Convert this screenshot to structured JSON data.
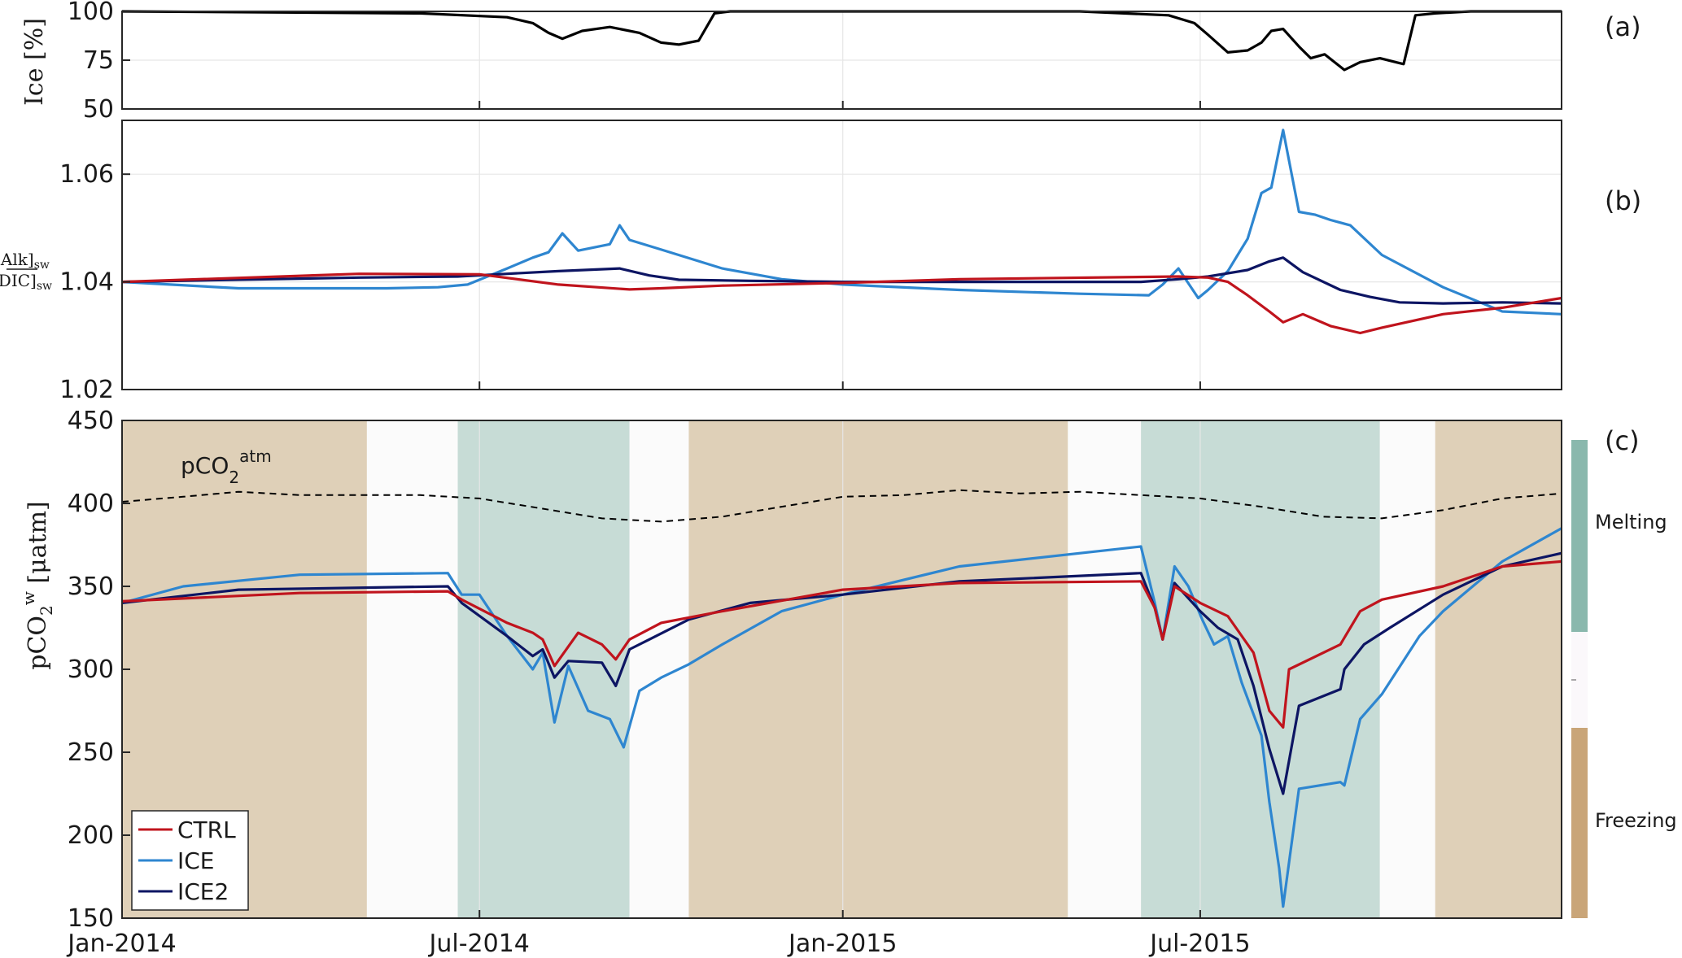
{
  "colors": {
    "ctrl": "#c0141d",
    "ice": "#2e86d0",
    "ice2": "#0d1563",
    "ice_cover": "#000000",
    "atm": "#000000",
    "freezing": "#dfd0b8",
    "melting": "#c7dcd6",
    "neutral": "#fbfbfb",
    "cbar_freezing": "#c9a578",
    "cbar_melting": "#8ab8ad",
    "cbar_neutral": "#fbf8fb",
    "grid": "#e6e6e6"
  },
  "x_ticks": [
    "Jan-2014",
    "Jul-2014",
    "Jan-2015",
    "Jul-2015"
  ],
  "chart_data": [
    {
      "panel": "(a)",
      "type": "line",
      "ylabel": "Ice [%]",
      "ylim": [
        50,
        100
      ],
      "yticks": [
        50,
        75,
        100
      ],
      "series": [
        {
          "key": "ice_cover",
          "x": [
            "2014-01-01",
            "2014-06-01",
            "2014-07-15",
            "2014-07-28",
            "2014-08-05",
            "2014-08-12",
            "2014-08-22",
            "2014-09-05",
            "2014-09-20",
            "2014-10-01",
            "2014-10-10",
            "2014-10-20",
            "2014-10-28",
            "2014-11-05",
            "2015-05-01",
            "2015-06-15",
            "2015-06-28",
            "2015-07-05",
            "2015-07-15",
            "2015-07-25",
            "2015-08-01",
            "2015-08-06",
            "2015-08-12",
            "2015-08-20",
            "2015-08-26",
            "2015-09-02",
            "2015-09-12",
            "2015-09-20",
            "2015-09-30",
            "2015-10-08",
            "2015-10-12",
            "2015-10-18",
            "2015-10-28",
            "2015-11-15",
            "2015-12-31"
          ],
          "values": [
            100,
            99,
            97,
            94,
            89,
            86,
            90,
            92,
            89,
            84,
            83,
            85,
            99,
            100,
            100,
            98,
            94,
            88,
            79,
            80,
            84,
            90,
            91,
            82,
            76,
            78,
            70,
            74,
            76,
            74,
            73,
            98,
            99,
            100,
            100
          ]
        }
      ]
    },
    {
      "panel": "(b)",
      "type": "line",
      "ylabel": "[Alk]sw / [DIC]sw",
      "ylim": [
        1.02,
        1.07
      ],
      "yticks": [
        1.02,
        1.04,
        1.06
      ],
      "series": [
        {
          "key": "ice",
          "x": [
            "2014-01-01",
            "2014-03-01",
            "2014-05-15",
            "2014-06-10",
            "2014-06-25",
            "2014-07-15",
            "2014-07-28",
            "2014-08-05",
            "2014-08-12",
            "2014-08-20",
            "2014-09-05",
            "2014-09-10",
            "2014-09-15",
            "2014-10-01",
            "2014-11-01",
            "2014-12-01",
            "2015-01-01",
            "2015-03-01",
            "2015-05-01",
            "2015-06-05",
            "2015-06-12",
            "2015-06-20",
            "2015-06-30",
            "2015-07-05",
            "2015-07-15",
            "2015-07-20",
            "2015-07-25",
            "2015-08-01",
            "2015-08-06",
            "2015-08-12",
            "2015-08-20",
            "2015-08-28",
            "2015-09-05",
            "2015-09-15",
            "2015-10-01",
            "2015-11-01",
            "2015-12-01",
            "2015-12-31"
          ],
          "values": [
            1.04,
            1.0388,
            1.0388,
            1.039,
            1.0395,
            1.0425,
            1.0445,
            1.0455,
            1.049,
            1.0458,
            1.047,
            1.0505,
            1.0478,
            1.046,
            1.0425,
            1.0405,
            1.0395,
            1.0385,
            1.0378,
            1.0375,
            1.0395,
            1.0425,
            1.037,
            1.0385,
            1.042,
            1.045,
            1.048,
            1.0565,
            1.0575,
            1.0682,
            1.053,
            1.0525,
            1.0515,
            1.0505,
            1.045,
            1.039,
            1.0345,
            1.034
          ]
        },
        {
          "key": "ice2",
          "x": [
            "2014-01-01",
            "2014-05-01",
            "2014-06-20",
            "2014-07-15",
            "2014-08-10",
            "2014-09-10",
            "2014-09-25",
            "2014-10-10",
            "2014-11-15",
            "2015-01-01",
            "2015-03-01",
            "2015-06-01",
            "2015-06-20",
            "2015-07-05",
            "2015-07-25",
            "2015-08-05",
            "2015-08-12",
            "2015-08-22",
            "2015-09-10",
            "2015-09-25",
            "2015-10-10",
            "2015-11-01",
            "2015-12-01",
            "2015-12-31"
          ],
          "values": [
            1.04,
            1.0408,
            1.041,
            1.0415,
            1.042,
            1.0425,
            1.0412,
            1.0404,
            1.0402,
            1.04,
            1.04,
            1.04,
            1.0405,
            1.041,
            1.0422,
            1.0438,
            1.0445,
            1.0418,
            1.0385,
            1.0372,
            1.0362,
            1.036,
            1.0362,
            1.036
          ]
        },
        {
          "key": "ctrl",
          "x": [
            "2014-01-01",
            "2014-05-01",
            "2014-07-01",
            "2014-08-10",
            "2014-09-15",
            "2014-10-01",
            "2014-11-01",
            "2015-01-01",
            "2015-03-01",
            "2015-06-20",
            "2015-07-05",
            "2015-07-15",
            "2015-07-25",
            "2015-08-05",
            "2015-08-12",
            "2015-08-22",
            "2015-09-05",
            "2015-09-20",
            "2015-10-01",
            "2015-11-01",
            "2015-12-01",
            "2015-12-31"
          ],
          "values": [
            1.04,
            1.0415,
            1.0414,
            1.0395,
            1.0386,
            1.0388,
            1.0393,
            1.0398,
            1.0405,
            1.041,
            1.0408,
            1.04,
            1.0375,
            1.0345,
            1.0325,
            1.034,
            1.0318,
            1.0305,
            1.0315,
            1.034,
            1.0352,
            1.037
          ]
        }
      ]
    },
    {
      "panel": "(c)",
      "type": "line",
      "ylabel": "pCO2w [μatm]",
      "ylim": [
        150,
        450
      ],
      "yticks": [
        150,
        200,
        250,
        300,
        350,
        400,
        450
      ],
      "annotation": "pCO2atm",
      "legend": [
        "CTRL",
        "ICE",
        "ICE2"
      ],
      "colorbar": [
        "Melting",
        "Freezing"
      ],
      "background": [
        {
          "kind": "freezing",
          "start": "2014-01-01",
          "end": "2014-05-05"
        },
        {
          "kind": "neutral",
          "start": "2014-05-05",
          "end": "2014-06-20"
        },
        {
          "kind": "melting",
          "start": "2014-06-20",
          "end": "2014-09-15"
        },
        {
          "kind": "neutral",
          "start": "2014-09-15",
          "end": "2014-10-15"
        },
        {
          "kind": "freezing",
          "start": "2014-10-15",
          "end": "2015-04-25"
        },
        {
          "kind": "neutral",
          "start": "2015-04-25",
          "end": "2015-06-01"
        },
        {
          "kind": "melting",
          "start": "2015-06-01",
          "end": "2015-09-30"
        },
        {
          "kind": "neutral",
          "start": "2015-09-30",
          "end": "2015-10-28"
        },
        {
          "kind": "freezing",
          "start": "2015-10-28",
          "end": "2015-12-31"
        }
      ],
      "series": [
        {
          "key": "atm",
          "style": "dashed",
          "x": [
            "2014-01-01",
            "2014-02-01",
            "2014-03-01",
            "2014-04-01",
            "2014-05-01",
            "2014-06-01",
            "2014-07-01",
            "2014-08-01",
            "2014-09-01",
            "2014-10-01",
            "2014-11-01",
            "2014-12-01",
            "2015-01-01",
            "2015-02-01",
            "2015-03-01",
            "2015-04-01",
            "2015-05-01",
            "2015-06-01",
            "2015-07-01",
            "2015-08-01",
            "2015-09-01",
            "2015-10-01",
            "2015-11-01",
            "2015-12-01",
            "2015-12-31"
          ],
          "values": [
            401,
            404,
            407,
            405,
            405,
            405,
            403,
            397,
            391,
            389,
            392,
            398,
            404,
            405,
            408,
            406,
            407,
            405,
            403,
            398,
            392,
            391,
            396,
            403,
            406
          ]
        },
        {
          "key": "ice",
          "x": [
            "2014-01-01",
            "2014-02-01",
            "2014-04-01",
            "2014-06-15",
            "2014-06-22",
            "2014-07-01",
            "2014-07-15",
            "2014-07-28",
            "2014-08-02",
            "2014-08-08",
            "2014-08-15",
            "2014-08-25",
            "2014-09-05",
            "2014-09-12",
            "2014-09-20",
            "2014-10-01",
            "2014-10-15",
            "2014-11-01",
            "2014-12-01",
            "2015-01-01",
            "2015-03-01",
            "2015-06-01",
            "2015-06-08",
            "2015-06-12",
            "2015-06-18",
            "2015-06-25",
            "2015-07-02",
            "2015-07-08",
            "2015-07-15",
            "2015-07-22",
            "2015-08-01",
            "2015-08-05",
            "2015-08-10",
            "2015-08-12",
            "2015-08-20",
            "2015-09-10",
            "2015-09-12",
            "2015-09-20",
            "2015-10-01",
            "2015-10-20",
            "2015-11-01",
            "2015-12-01",
            "2015-12-31"
          ],
          "values": [
            340,
            350,
            357,
            358,
            345,
            345,
            320,
            300,
            310,
            268,
            302,
            275,
            270,
            253,
            287,
            295,
            303,
            315,
            335,
            345,
            362,
            374,
            340,
            318,
            362,
            350,
            330,
            315,
            320,
            292,
            260,
            220,
            180,
            157,
            228,
            232,
            230,
            270,
            285,
            320,
            335,
            365,
            385
          ]
        },
        {
          "key": "ice2",
          "x": [
            "2014-01-01",
            "2014-03-01",
            "2014-06-15",
            "2014-06-22",
            "2014-07-15",
            "2014-07-28",
            "2014-08-02",
            "2014-08-08",
            "2014-08-15",
            "2014-09-01",
            "2014-09-08",
            "2014-09-15",
            "2014-09-25",
            "2014-10-15",
            "2014-11-15",
            "2015-01-01",
            "2015-03-01",
            "2015-06-01",
            "2015-06-08",
            "2015-06-12",
            "2015-06-18",
            "2015-07-01",
            "2015-07-10",
            "2015-07-20",
            "2015-07-28",
            "2015-08-05",
            "2015-08-12",
            "2015-08-20",
            "2015-09-10",
            "2015-09-12",
            "2015-09-22",
            "2015-10-05",
            "2015-11-01",
            "2015-12-01",
            "2015-12-31"
          ],
          "values": [
            340,
            348,
            350,
            340,
            320,
            308,
            312,
            295,
            305,
            304,
            290,
            312,
            318,
            330,
            340,
            345,
            353,
            358,
            337,
            318,
            352,
            335,
            325,
            318,
            290,
            252,
            225,
            278,
            288,
            300,
            315,
            325,
            345,
            362,
            370
          ]
        },
        {
          "key": "ctrl",
          "x": [
            "2014-01-01",
            "2014-04-01",
            "2014-06-15",
            "2014-06-22",
            "2014-07-15",
            "2014-07-28",
            "2014-08-02",
            "2014-08-08",
            "2014-08-20",
            "2014-09-01",
            "2014-09-08",
            "2014-09-15",
            "2014-10-01",
            "2014-11-01",
            "2015-01-01",
            "2015-03-01",
            "2015-06-01",
            "2015-06-08",
            "2015-06-12",
            "2015-06-18",
            "2015-07-01",
            "2015-07-15",
            "2015-07-28",
            "2015-08-05",
            "2015-08-12",
            "2015-08-15",
            "2015-09-10",
            "2015-09-20",
            "2015-10-01",
            "2015-11-01",
            "2015-12-01",
            "2015-12-31"
          ],
          "values": [
            341,
            346,
            347,
            342,
            328,
            322,
            318,
            302,
            322,
            315,
            306,
            318,
            328,
            335,
            348,
            352,
            353,
            337,
            318,
            350,
            340,
            332,
            310,
            275,
            265,
            300,
            315,
            335,
            342,
            350,
            362,
            365
          ]
        }
      ]
    }
  ]
}
